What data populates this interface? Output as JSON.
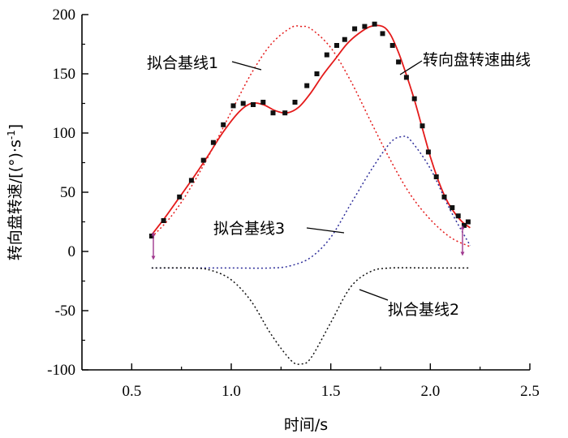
{
  "chart_data": {
    "type": "scatter",
    "title": "",
    "xlabel": "时间/s",
    "ylabel": "转向盘转速/[(°)·s",
    "ylabel_sup": "-1",
    "ylabel_close": "]",
    "xlim": [
      0.25,
      2.5
    ],
    "ylim": [
      -100,
      200
    ],
    "x_ticks": [
      0.5,
      1.0,
      1.5,
      2.0,
      2.5
    ],
    "x_tick_labels": [
      "0.5",
      "1.0",
      "1.5",
      "2.0",
      "2.5"
    ],
    "y_ticks": [
      -100,
      -50,
      0,
      50,
      100,
      150,
      200
    ],
    "y_tick_labels": [
      "-100",
      "-50",
      "0",
      "50",
      "100",
      "150",
      "200"
    ],
    "series": [
      {
        "name": "转向盘转速曲线",
        "kind": "markers",
        "color": "#111111",
        "x": [
          0.6,
          0.66,
          0.74,
          0.8,
          0.86,
          0.91,
          0.96,
          1.01,
          1.06,
          1.11,
          1.16,
          1.21,
          1.27,
          1.32,
          1.38,
          1.43,
          1.48,
          1.53,
          1.57,
          1.62,
          1.67,
          1.72,
          1.76,
          1.81,
          1.84,
          1.88,
          1.92,
          1.96,
          1.99,
          2.03,
          2.07,
          2.11,
          2.14,
          2.17,
          2.19
        ],
        "y": [
          13,
          26,
          46,
          60,
          77,
          92,
          107,
          123,
          125,
          124,
          126,
          117,
          117,
          126,
          140,
          150,
          166,
          174,
          179,
          188,
          190,
          192,
          184,
          174,
          160,
          147,
          129,
          106,
          84,
          63,
          46,
          37,
          30,
          22,
          25
        ]
      },
      {
        "name": "转向盘转速曲线",
        "kind": "fit",
        "color": "#e41a1a",
        "x": [
          0.6,
          0.66,
          0.72,
          0.8,
          0.88,
          0.96,
          1.04,
          1.1,
          1.16,
          1.22,
          1.28,
          1.34,
          1.4,
          1.46,
          1.52,
          1.58,
          1.64,
          1.7,
          1.76,
          1.8,
          1.84,
          1.88,
          1.92,
          1.96,
          2.0,
          2.04,
          2.08,
          2.12,
          2.16,
          2.2
        ],
        "y": [
          14,
          27,
          41,
          60,
          80,
          101,
          118,
          125,
          124,
          119,
          117,
          122,
          134,
          149,
          162,
          175,
          184,
          190,
          190,
          183,
          168,
          149,
          128,
          104,
          80,
          60,
          44,
          33,
          25,
          20
        ]
      },
      {
        "name": "拟合基线1",
        "kind": "baseline",
        "color": "#e41a1a",
        "x": [
          0.6,
          0.7,
          0.8,
          0.9,
          1.0,
          1.1,
          1.2,
          1.3,
          1.35,
          1.4,
          1.5,
          1.6,
          1.7,
          1.8,
          1.9,
          2.0,
          2.1,
          2.2
        ],
        "y": [
          12,
          30,
          55,
          85,
          118,
          150,
          175,
          189,
          190,
          188,
          172,
          144,
          110,
          77,
          48,
          27,
          12,
          4
        ]
      },
      {
        "name": "拟合基线3",
        "kind": "baseline",
        "color": "#2e2e9a",
        "x": [
          0.6,
          0.8,
          1.0,
          1.2,
          1.3,
          1.4,
          1.5,
          1.6,
          1.7,
          1.8,
          1.86,
          1.9,
          2.0,
          2.1,
          2.2
        ],
        "y": [
          -14,
          -14,
          -14,
          -14,
          -12,
          -5,
          12,
          40,
          68,
          92,
          97,
          94,
          70,
          35,
          5
        ]
      },
      {
        "name": "拟合基线2",
        "kind": "baseline",
        "color": "#111111",
        "x": [
          0.6,
          0.8,
          0.9,
          1.0,
          1.1,
          1.2,
          1.3,
          1.35,
          1.4,
          1.5,
          1.6,
          1.7,
          1.8,
          2.0,
          2.2
        ],
        "y": [
          -14,
          -14,
          -16,
          -24,
          -42,
          -70,
          -92,
          -95,
          -90,
          -60,
          -30,
          -17,
          -14,
          -14,
          -14
        ]
      }
    ],
    "annotations": [
      {
        "text": "拟合基线1",
        "points_to": "拟合基线1"
      },
      {
        "text": "转向盘转速曲线",
        "points_to": "转向盘转速曲线"
      },
      {
        "text": "拟合基线3",
        "points_to": "拟合基线3"
      },
      {
        "text": "拟合基线2",
        "points_to": "拟合基线2"
      }
    ],
    "grid": false,
    "legend": "none"
  }
}
